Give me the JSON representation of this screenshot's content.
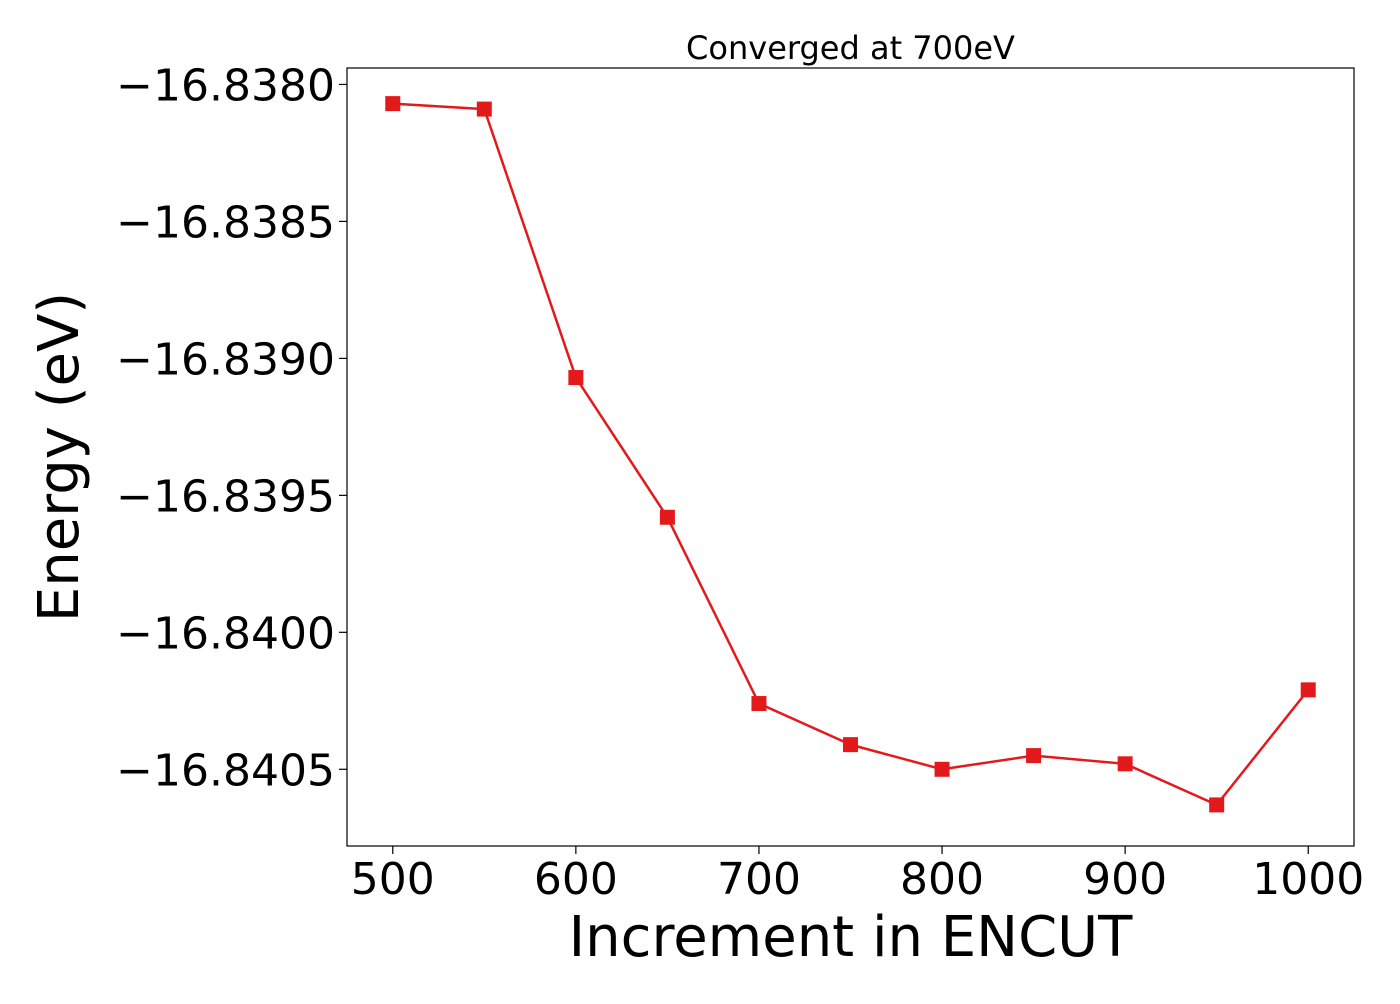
{
  "chart_data": {
    "type": "line",
    "title": "Converged at 700eV",
    "xlabel": "Increment in ENCUT",
    "ylabel": "Energy (eV)",
    "xlim": [
      475,
      1025
    ],
    "ylim": [
      -16.84078,
      -16.83794
    ],
    "x_ticks": [
      500,
      600,
      700,
      800,
      900,
      1000
    ],
    "x_tick_labels": [
      "500",
      "600",
      "700",
      "800",
      "900",
      "1000"
    ],
    "y_ticks": [
      -16.8405,
      -16.84,
      -16.8395,
      -16.839,
      -16.8385,
      -16.838
    ],
    "y_tick_labels": [
      "−16.8405",
      "−16.8400",
      "−16.8395",
      "−16.8390",
      "−16.8385",
      "−16.8380"
    ],
    "grid": false,
    "series": [
      {
        "color": "#e31a1c",
        "marker": "square",
        "x": [
          500,
          550,
          600,
          650,
          700,
          750,
          800,
          850,
          900,
          950,
          1000
        ],
        "y": [
          -16.83807,
          -16.83809,
          -16.83907,
          -16.83958,
          -16.84026,
          -16.84041,
          -16.8405,
          -16.84045,
          -16.84048,
          -16.84063,
          -16.84021
        ]
      }
    ]
  }
}
